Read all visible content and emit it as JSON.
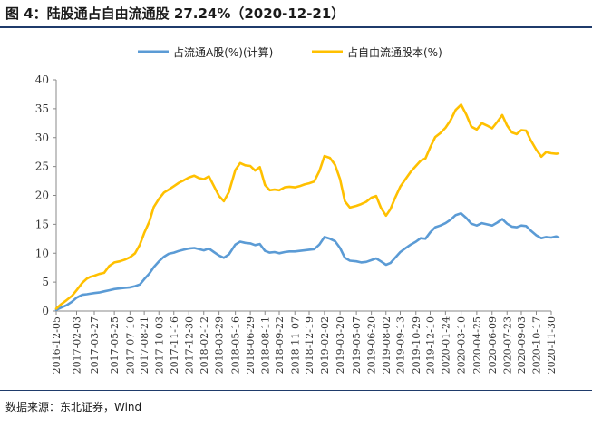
{
  "header": {
    "title": "图 4：陆股通占自由流通股 27.24%（2020-12-21）"
  },
  "footer": {
    "source": "数据来源：东北证券，Wind"
  },
  "colors": {
    "series_a": "#5b9bd5",
    "series_b": "#ffc000",
    "title_rule": "#1f3b6b"
  },
  "chart_data": {
    "type": "line",
    "title": "",
    "xlabel": "",
    "ylabel": "",
    "ylim": [
      0,
      40
    ],
    "yticks": [
      "0",
      "5",
      "10",
      "15",
      "20",
      "25",
      "30",
      "35",
      "40"
    ],
    "grid": false,
    "legend_position": "top",
    "x_ticks": [
      "2016-12-05",
      "2017-02-03",
      "2017-03-27",
      "2017-05-25",
      "2017-07-10",
      "2017-08-21",
      "2017-10-03",
      "2017-11-16",
      "2017-12-30",
      "2018-02-12",
      "2018-03-29",
      "2018-05-16",
      "2018-06-29",
      "2018-08-11",
      "2018-09-22",
      "2018-11-07",
      "2018-12-19",
      "2019-02-02",
      "2019-03-20",
      "2019-05-07",
      "2019-06-20",
      "2019-08-02",
      "2019-09-13",
      "2019-10-29",
      "2019-12-10",
      "2020-01-24",
      "2020-03-10",
      "2020-04-25",
      "2020-06-09",
      "2020-07-23",
      "2020-09-03",
      "2020-10-17",
      "2020-11-30"
    ],
    "series": [
      {
        "name": "占流通A股(%)(计算)",
        "x": [
          "2016-12-05",
          "2016-12-20",
          "2017-01-05",
          "2017-01-20",
          "2017-02-03",
          "2017-02-20",
          "2017-03-05",
          "2017-03-15",
          "2017-03-27",
          "2017-04-10",
          "2017-04-25",
          "2017-05-10",
          "2017-05-25",
          "2017-06-10",
          "2017-06-25",
          "2017-07-10",
          "2017-07-25",
          "2017-08-08",
          "2017-08-21",
          "2017-09-05",
          "2017-09-18",
          "2017-10-03",
          "2017-10-18",
          "2017-11-01",
          "2017-11-16",
          "2017-12-01",
          "2017-12-15",
          "2017-12-30",
          "2018-01-15",
          "2018-01-29",
          "2018-02-12",
          "2018-02-27",
          "2018-03-14",
          "2018-03-29",
          "2018-04-12",
          "2018-04-27",
          "2018-05-16",
          "2018-05-30",
          "2018-06-14",
          "2018-06-29",
          "2018-07-13",
          "2018-07-27",
          "2018-08-11",
          "2018-08-25",
          "2018-09-08",
          "2018-09-22",
          "2018-10-08",
          "2018-10-22",
          "2018-11-07",
          "2018-11-21",
          "2018-12-05",
          "2018-12-19",
          "2019-01-03",
          "2019-01-18",
          "2019-02-02",
          "2019-02-18",
          "2019-03-05",
          "2019-03-20",
          "2019-04-03",
          "2019-04-18",
          "2019-05-07",
          "2019-05-21",
          "2019-06-05",
          "2019-06-20",
          "2019-07-04",
          "2019-07-18",
          "2019-08-02",
          "2019-08-15",
          "2019-08-29",
          "2019-09-13",
          "2019-09-27",
          "2019-10-14",
          "2019-10-29",
          "2019-11-12",
          "2019-11-26",
          "2019-12-10",
          "2019-12-25",
          "2020-01-09",
          "2020-01-24",
          "2020-02-08",
          "2020-02-23",
          "2020-03-10",
          "2020-03-25",
          "2020-04-09",
          "2020-04-25",
          "2020-05-10",
          "2020-05-25",
          "2020-06-09",
          "2020-06-24",
          "2020-07-09",
          "2020-07-23",
          "2020-08-06",
          "2020-08-20",
          "2020-09-03",
          "2020-09-17",
          "2020-10-01",
          "2020-10-17",
          "2020-11-01",
          "2020-11-15",
          "2020-11-30",
          "2020-12-14",
          "2020-12-21"
        ],
        "values": [
          0.2,
          0.6,
          1.0,
          1.6,
          2.3,
          2.8,
          2.9,
          3.0,
          3.1,
          3.2,
          3.4,
          3.6,
          3.8,
          3.9,
          4.0,
          4.1,
          4.3,
          4.6,
          5.5,
          6.5,
          7.6,
          8.6,
          9.4,
          9.9,
          10.1,
          10.4,
          10.6,
          10.8,
          10.9,
          10.7,
          10.5,
          10.8,
          10.2,
          9.6,
          9.2,
          9.8,
          11.5,
          12.0,
          11.8,
          11.7,
          11.4,
          11.6,
          10.4,
          10.1,
          10.2,
          10.0,
          10.2,
          10.3,
          10.3,
          10.4,
          10.5,
          10.6,
          10.7,
          11.5,
          12.8,
          12.5,
          12.1,
          10.9,
          9.2,
          8.7,
          8.6,
          8.4,
          8.5,
          8.8,
          9.1,
          8.6,
          8.0,
          8.3,
          9.2,
          10.2,
          10.8,
          11.5,
          12.0,
          12.6,
          12.5,
          13.6,
          14.5,
          14.8,
          15.2,
          15.8,
          16.6,
          16.9,
          16.1,
          15.1,
          14.8,
          15.2,
          15.0,
          14.8,
          15.3,
          15.9,
          15.1,
          14.6,
          14.5,
          14.8,
          14.7,
          13.9,
          13.1,
          12.6,
          12.8,
          12.7,
          12.9,
          12.8
        ]
      },
      {
        "name": "占自由流通股本(%)",
        "x": [
          "2016-12-05",
          "2016-12-20",
          "2017-01-05",
          "2017-01-20",
          "2017-02-03",
          "2017-02-20",
          "2017-03-05",
          "2017-03-15",
          "2017-03-27",
          "2017-04-10",
          "2017-04-25",
          "2017-05-10",
          "2017-05-25",
          "2017-06-10",
          "2017-06-25",
          "2017-07-10",
          "2017-07-25",
          "2017-08-08",
          "2017-08-21",
          "2017-09-05",
          "2017-09-18",
          "2017-10-03",
          "2017-10-18",
          "2017-11-01",
          "2017-11-16",
          "2017-12-01",
          "2017-12-15",
          "2017-12-30",
          "2018-01-15",
          "2018-01-29",
          "2018-02-12",
          "2018-02-27",
          "2018-03-14",
          "2018-03-29",
          "2018-04-12",
          "2018-04-27",
          "2018-05-16",
          "2018-05-30",
          "2018-06-14",
          "2018-06-29",
          "2018-07-13",
          "2018-07-27",
          "2018-08-11",
          "2018-08-25",
          "2018-09-08",
          "2018-09-22",
          "2018-10-08",
          "2018-10-22",
          "2018-11-07",
          "2018-11-21",
          "2018-12-05",
          "2018-12-19",
          "2019-01-03",
          "2019-01-18",
          "2019-02-02",
          "2019-02-18",
          "2019-03-05",
          "2019-03-20",
          "2019-04-03",
          "2019-04-18",
          "2019-05-07",
          "2019-05-21",
          "2019-06-05",
          "2019-06-20",
          "2019-07-04",
          "2019-07-18",
          "2019-08-02",
          "2019-08-15",
          "2019-08-29",
          "2019-09-13",
          "2019-09-27",
          "2019-10-14",
          "2019-10-29",
          "2019-11-12",
          "2019-11-26",
          "2019-12-10",
          "2019-12-25",
          "2020-01-09",
          "2020-01-24",
          "2020-02-08",
          "2020-02-23",
          "2020-03-10",
          "2020-03-25",
          "2020-04-09",
          "2020-04-25",
          "2020-05-10",
          "2020-05-25",
          "2020-06-09",
          "2020-06-24",
          "2020-07-09",
          "2020-07-23",
          "2020-08-06",
          "2020-08-20",
          "2020-09-03",
          "2020-09-17",
          "2020-10-01",
          "2020-10-17",
          "2020-11-01",
          "2020-11-15",
          "2020-11-30",
          "2020-12-14",
          "2020-12-21"
        ],
        "values": [
          0.4,
          1.2,
          1.9,
          2.6,
          3.6,
          4.9,
          5.6,
          5.9,
          6.1,
          6.4,
          6.6,
          7.8,
          8.4,
          8.6,
          8.9,
          9.3,
          10.0,
          11.5,
          13.5,
          15.5,
          18.0,
          19.4,
          20.5,
          21.0,
          21.6,
          22.2,
          22.6,
          23.1,
          23.4,
          23.0,
          22.8,
          23.3,
          21.6,
          19.9,
          19.0,
          20.6,
          24.4,
          25.6,
          25.2,
          25.1,
          24.3,
          24.9,
          21.8,
          20.9,
          21.0,
          20.9,
          21.4,
          21.5,
          21.4,
          21.6,
          21.9,
          22.1,
          22.4,
          24.2,
          26.8,
          26.5,
          25.3,
          22.8,
          19.0,
          17.9,
          18.2,
          18.5,
          18.9,
          19.6,
          19.9,
          17.9,
          16.5,
          17.6,
          19.6,
          21.5,
          22.7,
          24.1,
          25.1,
          26.0,
          26.4,
          28.3,
          30.1,
          30.8,
          31.7,
          33.0,
          34.8,
          35.7,
          34.0,
          31.9,
          31.4,
          32.5,
          32.1,
          31.6,
          32.7,
          33.9,
          32.1,
          30.9,
          30.6,
          31.3,
          31.2,
          29.5,
          27.9,
          26.7,
          27.5,
          27.3,
          27.2,
          27.24
        ]
      }
    ]
  }
}
